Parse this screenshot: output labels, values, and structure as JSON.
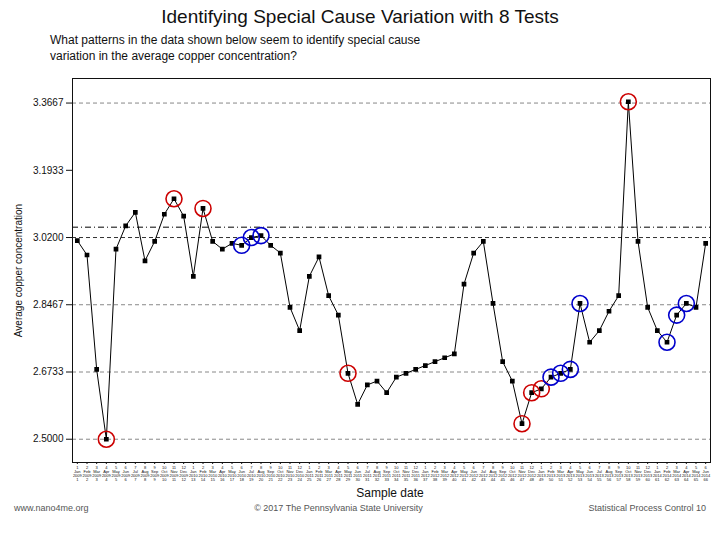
{
  "chart_data": {
    "type": "line",
    "title": "Identifying Special Cause Variation with 8 Tests",
    "subtitle": "What patterns in the data shown below seem to identify special cause\nvariation in the average copper concentration?",
    "footer": [
      "www.nano4me.org",
      "© 2017 The Pennsylvania State University",
      "Statistical Process Control 10"
    ],
    "xlabel": "Sample date",
    "ylabel": "Average copper concentration",
    "categories": [
      "1\nJan\n2009\n1",
      "2\nFeb\n2009\n2",
      "3\nMar\n2009\n3",
      "4\nApr\n2009\n4",
      "5\nMay\n2009\n5",
      "6\nJun\n2009\n6",
      "7\nJul\n2009\n7",
      "8\nAug\n2009\n8",
      "9\nSep\n2009\n9",
      "10\nOct\n2009\n10",
      "11\nNov\n2009\n11",
      "12\nDec\n2009\n12",
      "1\nJan\n2010\n13",
      "2\nFeb\n2010\n14",
      "3\nMar\n2010\n15",
      "4\nApr\n2010\n16",
      "5\nMay\n2010\n17",
      "6\nJun\n2010\n18",
      "7\nJul\n2010\n19",
      "8\nAug\n2010\n20",
      "9\nSep\n2010\n21",
      "10\nOct\n2010\n22",
      "11\nNov\n2010\n23",
      "12\nDec\n2010\n24",
      "1\nJan\n2011\n25",
      "2\nFeb\n2011\n26",
      "3\nMar\n2011\n27",
      "4\nApr\n2011\n28",
      "5\nMay\n2011\n29",
      "6\nJun\n2011\n30",
      "7\nJul\n2011\n31",
      "8\nAug\n2011\n32",
      "9\nSep\n2011\n33",
      "10\nOct\n2011\n34",
      "11\nNov\n2011\n35",
      "12\nDec\n2011\n36",
      "1\nJan\n2012\n37",
      "2\nFeb\n2012\n38",
      "3\nMar\n2012\n39",
      "4\nApr\n2012\n40",
      "5\nMay\n2012\n41",
      "6\nJun\n2012\n42",
      "7\nJul\n2012\n43",
      "8\nAug\n2012\n44",
      "9\nSep\n2012\n45",
      "10\nOct\n2012\n46",
      "11\nNov\n2012\n47",
      "12\nDec\n2012\n48",
      "1\nJan\n2013\n49",
      "2\nFeb\n2013\n50",
      "3\nMar\n2013\n51",
      "4\nApr\n2013\n52",
      "5\nMay\n2013\n53",
      "6\nJun\n2013\n54",
      "7\nJul\n2013\n55",
      "8\nAug\n2013\n56",
      "9\nSep\n2013\n57",
      "10\nOct\n2013\n58",
      "11\nNov\n2013\n59",
      "12\nDec\n2013\n60",
      "1\nJan\n2014\n61",
      "2\nFeb\n2014\n62",
      "3\nMar\n2014\n63",
      "4\nApr\n2014\n64",
      "5\nMay\n2014\n65",
      "6\nJun\n2014\n66"
    ],
    "values": [
      3.012,
      2.975,
      2.68,
      2.5,
      2.99,
      3.05,
      3.085,
      2.96,
      3.01,
      3.08,
      3.12,
      3.075,
      2.92,
      3.095,
      3.01,
      2.99,
      3.005,
      3.0,
      3.02,
      3.025,
      3.0,
      2.98,
      2.84,
      2.78,
      2.92,
      2.97,
      2.87,
      2.82,
      2.67,
      2.59,
      2.64,
      2.65,
      2.62,
      2.66,
      2.67,
      2.68,
      2.69,
      2.7,
      2.71,
      2.72,
      2.9,
      2.98,
      3.01,
      2.85,
      2.7,
      2.65,
      2.54,
      2.62,
      2.63,
      2.66,
      2.67,
      2.68,
      2.85,
      2.75,
      2.78,
      2.83,
      2.87,
      3.37,
      3.01,
      2.84,
      2.78,
      2.75,
      2.82,
      2.85,
      2.84,
      3.005
    ],
    "color": "#000000",
    "marker": "square",
    "line_style": "solid",
    "reference_lines": [
      {
        "value": 3.3667,
        "color": "#888888",
        "line_style": "dashed"
      },
      {
        "value": 2.5,
        "color": "#888888",
        "line_style": "dashed"
      },
      {
        "value": 3.02,
        "color": "#333333",
        "line_style": "dashed"
      },
      {
        "value": 3.0467,
        "color": "#000000",
        "line_style": "dashdot"
      },
      {
        "value": 2.8467,
        "color": "#888888",
        "line_style": "dashed"
      },
      {
        "value": 2.6733,
        "color": "#888888",
        "line_style": "dashed"
      }
    ],
    "circled": [
      {
        "color": "#cc0000",
        "marker": "circle",
        "indices": [
          3,
          10,
          13,
          28,
          46,
          47,
          48,
          57
        ]
      },
      {
        "color": "#0000cc",
        "marker": "circle",
        "indices": [
          17,
          18,
          19,
          49,
          50,
          51,
          52,
          61,
          62,
          63
        ]
      }
    ],
    "ylim": [
      2.44,
      3.43
    ],
    "yticks": [
      {
        "value": 2.5,
        "label": "2.5000"
      },
      2.6733,
      2.8467,
      {
        "value": 3.02,
        "label": "3.0200"
      },
      3.1933,
      3.3667
    ],
    "grid": false
  }
}
